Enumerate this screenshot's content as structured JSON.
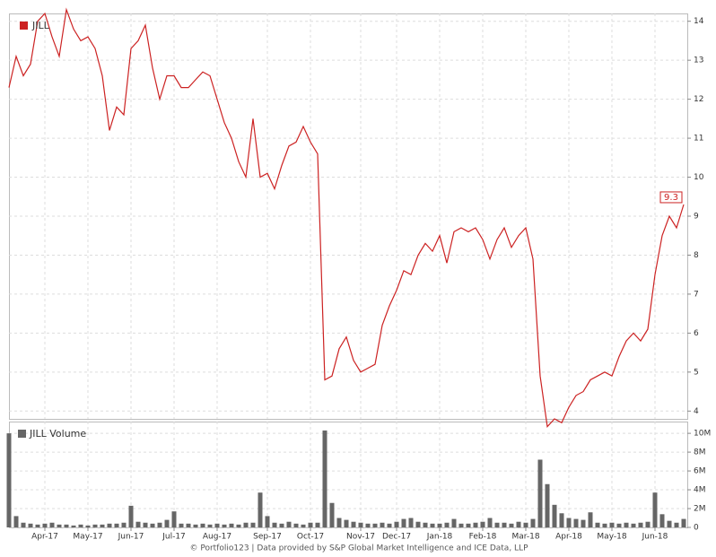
{
  "chart_data": [
    {
      "type": "line",
      "categories": [
        null,
        null,
        null,
        null,
        null,
        "Apr-17",
        null,
        null,
        null,
        null,
        null,
        "May-17",
        null,
        null,
        null,
        null,
        null,
        "Jun-17",
        null,
        null,
        null,
        null,
        null,
        "Jul-17",
        null,
        null,
        null,
        null,
        null,
        "Aug-17",
        null,
        null,
        null,
        null,
        null,
        null,
        "Sep-17",
        null,
        null,
        null,
        null,
        null,
        "Oct-17",
        null,
        null,
        null,
        null,
        null,
        null,
        "Nov-17",
        null,
        null,
        null,
        null,
        "Dec-17",
        null,
        null,
        null,
        null,
        null,
        "Jan-18",
        null,
        null,
        null,
        null,
        null,
        "Feb-18",
        null,
        null,
        null,
        null,
        null,
        "Mar-18",
        null,
        null,
        null,
        null,
        null,
        "Apr-18",
        null,
        null,
        null,
        null,
        null,
        "May-18",
        null,
        null,
        null,
        null,
        null,
        "Jun-18",
        null,
        null,
        null,
        null
      ],
      "series": [
        {
          "name": "JILL",
          "color": "#cc2222",
          "values": [
            12.3,
            13.1,
            12.6,
            12.9,
            14.0,
            14.2,
            13.6,
            13.1,
            14.3,
            13.8,
            13.5,
            13.6,
            13.3,
            12.6,
            11.2,
            11.8,
            11.6,
            13.3,
            13.5,
            13.9,
            12.8,
            12.0,
            12.6,
            12.6,
            12.3,
            12.3,
            12.5,
            12.7,
            12.6,
            12.0,
            11.4,
            11.0,
            10.4,
            10.0,
            11.5,
            10.0,
            10.1,
            9.7,
            10.3,
            10.8,
            10.9,
            11.3,
            10.9,
            10.6,
            4.8,
            4.9,
            5.6,
            5.9,
            5.3,
            5.0,
            5.1,
            5.2,
            6.2,
            6.7,
            7.1,
            7.6,
            7.5,
            8.0,
            8.3,
            8.1,
            8.5,
            7.8,
            8.6,
            8.7,
            8.6,
            8.7,
            8.4,
            7.9,
            8.4,
            8.7,
            8.2,
            8.5,
            8.7,
            7.9,
            4.9,
            3.6,
            3.8,
            3.7,
            4.1,
            4.4,
            4.5,
            4.8,
            4.9,
            5.0,
            4.9,
            5.4,
            5.8,
            6.0,
            5.8,
            6.1,
            7.5,
            8.5,
            9.0,
            8.7,
            9.3
          ]
        }
      ],
      "ylim": [
        3.8,
        14.2
      ],
      "yticks": [
        4,
        5,
        6,
        7,
        8,
        9,
        10,
        11,
        12,
        13,
        14
      ],
      "grid": true
    },
    {
      "type": "bar",
      "series": [
        {
          "name": "JILL Volume",
          "color": "#666666",
          "values": [
            10000000,
            1200000,
            500000,
            400000,
            300000,
            400000,
            500000,
            300000,
            300000,
            200000,
            300000,
            200000,
            300000,
            300000,
            400000,
            400000,
            500000,
            2300000,
            600000,
            500000,
            400000,
            500000,
            800000,
            1700000,
            400000,
            400000,
            300000,
            400000,
            300000,
            400000,
            300000,
            400000,
            300000,
            500000,
            500000,
            3700000,
            1200000,
            500000,
            400000,
            600000,
            400000,
            300000,
            500000,
            500000,
            10300000,
            2600000,
            1000000,
            800000,
            600000,
            500000,
            400000,
            400000,
            500000,
            400000,
            600000,
            900000,
            1000000,
            600000,
            500000,
            400000,
            400000,
            500000,
            900000,
            400000,
            400000,
            500000,
            600000,
            1000000,
            500000,
            500000,
            400000,
            600000,
            500000,
            900000,
            7200000,
            4600000,
            2400000,
            1500000,
            1000000,
            900000,
            800000,
            1600000,
            500000,
            400000,
            500000,
            400000,
            500000,
            400000,
            500000,
            600000,
            3700000,
            1400000,
            700000,
            500000,
            900000
          ]
        }
      ],
      "ylim": [
        0,
        11250000
      ],
      "yticks": [
        0,
        {
          "value": 2000000,
          "label": "2M"
        },
        {
          "value": 4000000,
          "label": "4M"
        },
        {
          "value": 6000000,
          "label": "6M"
        },
        {
          "value": 8000000,
          "label": "8M"
        },
        {
          "value": 10000000,
          "label": "10M"
        }
      ],
      "grid": true
    }
  ],
  "footer": "© Portfolio123 | Data provided by S&P Global Market Intelligence and ICE Data, LLP"
}
